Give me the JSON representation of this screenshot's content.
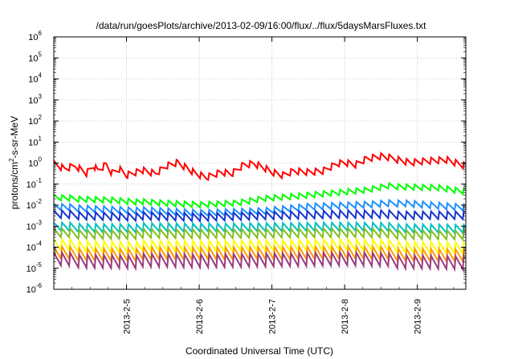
{
  "chart_data": {
    "type": "line",
    "title": "/data/run/goesPlots/archive/2013-02-09/16:00/flux/../flux/5daysMarsFluxes.txt",
    "xlabel": "Coordinated Universal Time (UTC)",
    "ylabel": {
      "pre": "protons/cm",
      "sup": "2",
      "post": "-s-sr-MeV"
    },
    "x_range": [
      "2013-02-04T00:00",
      "2013-02-09T16:00"
    ],
    "x_ticks": [
      "2013-2-5",
      "2013-2-6",
      "2013-2-7",
      "2013-2-8",
      "2013-2-9"
    ],
    "y_scale": "log",
    "y_range": [
      1e-06,
      1000000.0
    ],
    "y_tick_exponents": [
      -6,
      -5,
      -4,
      -3,
      -2,
      -1,
      0,
      1,
      2,
      3,
      4,
      5,
      6
    ],
    "y_tick_base": "10",
    "grid": true,
    "series": [
      {
        "color": "#ff0000",
        "base_start": 0.9,
        "sawtooth_factor": 2.2,
        "period_hours": 2.7,
        "trend": [
          [
            0,
            0.9
          ],
          [
            0.15,
            0.5
          ],
          [
            0.3,
            0.75
          ],
          [
            0.45,
            0.35
          ],
          [
            0.55,
            0.8
          ],
          [
            0.6,
            0.45
          ],
          [
            0.72,
            0.9
          ],
          [
            0.8,
            0.35
          ],
          [
            0.9,
            0.55
          ],
          [
            1.0,
            0.28
          ],
          [
            1.2,
            0.45
          ],
          [
            1.4,
            0.3
          ],
          [
            1.55,
            0.7
          ],
          [
            1.7,
            1.0
          ],
          [
            1.85,
            0.5
          ],
          [
            1.95,
            0.3
          ],
          [
            2.1,
            0.2
          ],
          [
            2.3,
            0.35
          ],
          [
            2.45,
            0.3
          ],
          [
            2.6,
            0.75
          ],
          [
            2.75,
            0.9
          ],
          [
            2.9,
            0.55
          ],
          [
            3.0,
            0.35
          ],
          [
            3.15,
            0.25
          ],
          [
            3.3,
            0.4
          ],
          [
            3.5,
            0.35
          ],
          [
            3.7,
            0.4
          ],
          [
            3.8,
            0.6
          ],
          [
            3.9,
            0.9
          ],
          [
            4.0,
            1.0
          ],
          [
            4.15,
            0.8
          ],
          [
            4.3,
            1.5
          ],
          [
            4.5,
            2.0
          ],
          [
            4.7,
            1.6
          ],
          [
            4.9,
            1.1
          ],
          [
            5.1,
            1.3
          ],
          [
            5.4,
            1.5
          ],
          [
            5.67,
            0.75
          ]
        ]
      },
      {
        "color": "#00ff00",
        "sawtooth_factor": 2.0,
        "period_hours": 2.7,
        "trend": [
          [
            0,
            0.022
          ],
          [
            0.8,
            0.018
          ],
          [
            1.5,
            0.012
          ],
          [
            2.0,
            0.01
          ],
          [
            2.5,
            0.012
          ],
          [
            2.9,
            0.02
          ],
          [
            3.3,
            0.025
          ],
          [
            3.8,
            0.035
          ],
          [
            4.3,
            0.05
          ],
          [
            4.6,
            0.08
          ],
          [
            4.9,
            0.075
          ],
          [
            5.3,
            0.07
          ],
          [
            5.67,
            0.045
          ]
        ]
      },
      {
        "color": "#1e90ff",
        "sawtooth_factor": 2.2,
        "period_hours": 2.7,
        "trend": [
          [
            0,
            0.008
          ],
          [
            1.0,
            0.006
          ],
          [
            2.0,
            0.004
          ],
          [
            2.9,
            0.005
          ],
          [
            3.5,
            0.008
          ],
          [
            4.3,
            0.01
          ],
          [
            4.8,
            0.013
          ],
          [
            5.67,
            0.008
          ]
        ]
      },
      {
        "color": "#1533cc",
        "sawtooth_factor": 2.6,
        "period_hours": 2.7,
        "trend": [
          [
            0,
            0.0035
          ],
          [
            1.0,
            0.003
          ],
          [
            2.0,
            0.0025
          ],
          [
            2.9,
            0.003
          ],
          [
            4.0,
            0.0035
          ],
          [
            5.67,
            0.0035
          ]
        ]
      },
      {
        "color": "#00c0c0",
        "sawtooth_factor": 2.8,
        "period_hours": 2.7,
        "trend": [
          [
            0,
            0.0009
          ],
          [
            2.0,
            0.0008
          ],
          [
            4.0,
            0.0009
          ],
          [
            5.67,
            0.0008
          ]
        ]
      },
      {
        "color": "#80c020",
        "sawtooth_factor": 3.0,
        "period_hours": 2.7,
        "trend": [
          [
            0,
            0.00045
          ],
          [
            2.0,
            0.0004
          ],
          [
            4.0,
            0.00045
          ],
          [
            5.67,
            0.0004
          ]
        ]
      },
      {
        "color": "#ffff00",
        "sawtooth_factor": 4.0,
        "period_hours": 2.7,
        "trend": [
          [
            0,
            0.00012
          ],
          [
            2.0,
            0.0001
          ],
          [
            4.0,
            0.00012
          ],
          [
            5.67,
            0.0001
          ]
        ]
      },
      {
        "color": "#ff9900",
        "sawtooth_factor": 4.5,
        "period_hours": 2.7,
        "trend": [
          [
            0,
            5e-05
          ],
          [
            2.0,
            4.5e-05
          ],
          [
            4.0,
            5e-05
          ],
          [
            5.67,
            4.5e-05
          ]
        ]
      },
      {
        "color": "#9b3a80",
        "sawtooth_factor": 5.0,
        "period_hours": 2.7,
        "trend": [
          [
            0,
            2.5e-05
          ],
          [
            2.0,
            2e-05
          ],
          [
            4.0,
            2.5e-05
          ],
          [
            5.67,
            2e-05
          ]
        ]
      }
    ]
  }
}
